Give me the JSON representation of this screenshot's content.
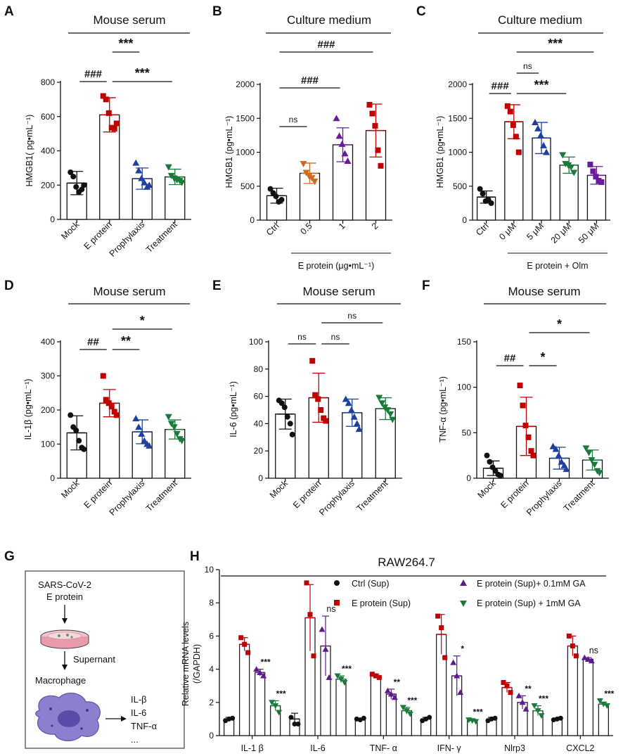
{
  "panels": {
    "A": {
      "label": "A",
      "title": "Mouse serum",
      "ylabel": "HMGB1( pg•mL⁻¹)",
      "categories": [
        "Mock",
        "E protein",
        "Prophylaxis",
        "Treatment"
      ],
      "annotations": [
        "###",
        "***",
        "***"
      ]
    },
    "B": {
      "label": "B",
      "title": "Culture medium",
      "ylabel": "HMGB1 (pg•mL⁻¹)",
      "categories": [
        "Ctrl",
        "0.5",
        "1",
        "2"
      ],
      "group_label": "E protein (μg•mL⁻¹)",
      "annotations": [
        "ns",
        "###",
        "###"
      ]
    },
    "C": {
      "label": "C",
      "title": "Culture medium",
      "ylabel": "HMGB1 (pg•mL⁻¹)",
      "categories": [
        "Ctrl",
        "0 μM",
        "5 μM",
        "20 μM",
        "50 μM"
      ],
      "group_label": "E protein + Olm",
      "annotations": [
        "###",
        "ns",
        "***",
        "***"
      ]
    },
    "D": {
      "label": "D",
      "title": "Mouse serum",
      "ylabel": "IL-1β (pg•mL⁻¹)",
      "categories": [
        "Mock",
        "E protein",
        "Prophylaxis",
        "Treatment"
      ],
      "annotations": [
        "##",
        "**",
        "*"
      ]
    },
    "E": {
      "label": "E",
      "title": "Mouse serum",
      "ylabel": "IL-6 (pg•mL⁻¹)",
      "categories": [
        "Mock",
        "E protein",
        "Prophylaxis",
        "Treatment"
      ],
      "annotations": [
        "ns",
        "ns",
        "ns"
      ]
    },
    "F": {
      "label": "F",
      "title": "Mouse serum",
      "ylabel": "TNF-α (pg•mL⁻¹)",
      "categories": [
        "Mock",
        "E protein",
        "Prophylaxis",
        "Treatment"
      ],
      "annotations": [
        "##",
        "*",
        "*"
      ]
    },
    "G": {
      "label": "G",
      "lines": [
        "SARS-CoV-2",
        "E protein",
        "Supernant",
        "Macrophage",
        "IL-β",
        "IL-6",
        "TNF-α",
        "..."
      ]
    },
    "H": {
      "label": "H",
      "title": "RAW264.7",
      "ylabel_line1": "Relative mRNA levels",
      "ylabel_line2": "(/GAPDH)",
      "legend": [
        "Ctrl (Sup)",
        "E protein (Sup)",
        "E protein (Sup)+ 0.1mM GA",
        "E protein (Sup) + 1mM GA"
      ]
    }
  },
  "chart_data": [
    {
      "id": "A",
      "type": "bar",
      "title": "Mouse serum",
      "ylabel": "HMGB1( pg•mL⁻¹)",
      "ylim": [
        0,
        800
      ],
      "yticks": [
        0,
        200,
        400,
        600,
        800
      ],
      "categories": [
        "Mock",
        "E protein",
        "Prophylaxis",
        "Treatment"
      ],
      "values": [
        212,
        610,
        238,
        248
      ],
      "errors": [
        68,
        100,
        62,
        45
      ],
      "colors": [
        "#111111",
        "#c00000",
        "#1f3f9e",
        "#1b7a3a"
      ],
      "markers": [
        "circle",
        "square",
        "triangle",
        "tri-down"
      ],
      "points": [
        [
          275,
          250,
          190,
          160,
          175,
          200
        ],
        [
          720,
          700,
          620,
          535,
          530,
          560
        ],
        [
          330,
          285,
          240,
          215,
          190,
          200
        ],
        [
          305,
          255,
          240,
          230,
          225,
          215
        ]
      ],
      "brackets": [
        {
          "from": 0,
          "to": 1,
          "text": "###",
          "level": 0
        },
        {
          "from": 1,
          "to": 3,
          "text": "***",
          "level": 0
        },
        {
          "from": 1,
          "to": 2,
          "text": "***",
          "level": 1
        }
      ]
    },
    {
      "id": "B",
      "type": "bar",
      "title": "Culture medium",
      "ylabel": "HMGB1 (pg•mL⁻¹)",
      "ylim": [
        0,
        2000
      ],
      "yticks": [
        0,
        500,
        1000,
        1500,
        2000
      ],
      "categories": [
        "Ctrl",
        "0.5",
        "1",
        "2"
      ],
      "values": [
        360,
        690,
        1110,
        1320
      ],
      "errors": [
        110,
        150,
        250,
        390
      ],
      "colors": [
        "#111111",
        "#d2691e",
        "#6a1b9a",
        "#c00000"
      ],
      "markers": [
        "circle",
        "tri-down",
        "triangle",
        "square"
      ],
      "points": [
        [
          460,
          400,
          350,
          270,
          300
        ],
        [
          830,
          700,
          650,
          620,
          570
        ],
        [
          1500,
          1240,
          1120,
          980,
          870
        ],
        [
          1700,
          1570,
          1390,
          1030,
          800
        ]
      ],
      "brackets": [
        {
          "from": 0,
          "to": 1,
          "text": "ns",
          "level": 0
        },
        {
          "from": 0,
          "to": 2,
          "text": "###",
          "level": 1
        },
        {
          "from": 0,
          "to": 3,
          "text": "###",
          "level": 2
        }
      ]
    },
    {
      "id": "C",
      "type": "bar",
      "title": "Culture medium",
      "ylabel": "HMGB1 (pg•mL⁻¹)",
      "ylim": [
        0,
        2000
      ],
      "yticks": [
        0,
        500,
        1000,
        1500,
        2000
      ],
      "categories": [
        "Ctrl",
        "0 μM",
        "5 μM",
        "20 μM",
        "50 μM"
      ],
      "values": [
        340,
        1450,
        1210,
        810,
        660
      ],
      "errors": [
        90,
        250,
        230,
        120,
        130
      ],
      "colors": [
        "#111111",
        "#c00000",
        "#1f3f9e",
        "#1b7a3a",
        "#6a1b9a"
      ],
      "markers": [
        "circle",
        "square",
        "triangle",
        "tri-down",
        "square"
      ],
      "points": [
        [
          460,
          390,
          280,
          300,
          250
        ],
        [
          1680,
          1600,
          1400,
          1230,
          1000
        ],
        [
          1440,
          1350,
          1250,
          1100,
          1000
        ],
        [
          960,
          830,
          810,
          780,
          700
        ],
        [
          820,
          720,
          640,
          580,
          560
        ]
      ],
      "brackets": [
        {
          "from": 0,
          "to": 1,
          "text": "###",
          "level": 0
        },
        {
          "from": 1,
          "to": 3,
          "text": "***",
          "level": 0
        },
        {
          "from": 1,
          "to": 2,
          "text": "ns",
          "level": 1
        },
        {
          "from": 1,
          "to": 4,
          "text": "***",
          "level": 2
        }
      ]
    },
    {
      "id": "D",
      "type": "bar",
      "title": "Mouse serum",
      "ylabel": "IL-1β (pg•mL⁻¹)",
      "ylim": [
        0,
        400
      ],
      "yticks": [
        0,
        100,
        200,
        300,
        400
      ],
      "categories": [
        "Mock",
        "E protein",
        "Prophylaxis",
        "Treatment"
      ],
      "values": [
        133,
        220,
        136,
        143
      ],
      "errors": [
        50,
        40,
        35,
        28
      ],
      "colors": [
        "#111111",
        "#c00000",
        "#1f3f9e",
        "#1b7a3a"
      ],
      "markers": [
        "circle",
        "square",
        "triangle",
        "tri-down"
      ],
      "points": [
        [
          185,
          150,
          140,
          110,
          90,
          85
        ],
        [
          300,
          230,
          220,
          210,
          195,
          185
        ],
        [
          175,
          150,
          130,
          110,
          100,
          95
        ],
        [
          180,
          160,
          150,
          130,
          115,
          110
        ]
      ],
      "brackets": [
        {
          "from": 0,
          "to": 1,
          "text": "##",
          "level": 0
        },
        {
          "from": 1,
          "to": 2,
          "text": "**",
          "level": 0
        },
        {
          "from": 1,
          "to": 3,
          "text": "*",
          "level": 1
        }
      ]
    },
    {
      "id": "E",
      "type": "bar",
      "title": "Mouse serum",
      "ylabel": "IL-6 (pg•mL⁻¹)",
      "ylim": [
        0,
        100
      ],
      "yticks": [
        0,
        20,
        40,
        60,
        80,
        100
      ],
      "categories": [
        "Mock",
        "E protein",
        "Prophylaxis",
        "Treatment"
      ],
      "values": [
        47,
        59,
        48,
        51
      ],
      "errors": [
        11,
        18,
        10,
        8
      ],
      "colors": [
        "#111111",
        "#c00000",
        "#1f3f9e",
        "#1b7a3a"
      ],
      "markers": [
        "circle",
        "square",
        "triangle",
        "tri-down"
      ],
      "points": [
        [
          57,
          55,
          52,
          45,
          40,
          32
        ],
        [
          86,
          61,
          58,
          50,
          44,
          42
        ],
        [
          58,
          55,
          50,
          45,
          40,
          36
        ],
        [
          59,
          55,
          52,
          50,
          47,
          43
        ]
      ],
      "brackets": [
        {
          "from": 0,
          "to": 1,
          "text": "ns",
          "level": 0
        },
        {
          "from": 1,
          "to": 2,
          "text": "ns",
          "level": 0
        },
        {
          "from": 1,
          "to": 3,
          "text": "ns",
          "level": 1
        }
      ]
    },
    {
      "id": "F",
      "type": "bar",
      "title": "Mouse serum",
      "ylabel": "TNF-α (pg•mL⁻¹)",
      "ylim": [
        0,
        150
      ],
      "yticks": [
        0,
        50,
        100,
        150
      ],
      "categories": [
        "Mock",
        "E protein",
        "Prophylaxis",
        "Treatment"
      ],
      "values": [
        11,
        57,
        22,
        20
      ],
      "errors": [
        8,
        32,
        12,
        11
      ],
      "colors": [
        "#111111",
        "#c00000",
        "#1f3f9e",
        "#1b7a3a"
      ],
      "markers": [
        "circle",
        "square",
        "triangle",
        "tri-down"
      ],
      "points": [
        [
          25,
          18,
          12,
          8,
          4,
          3
        ],
        [
          102,
          80,
          58,
          45,
          30,
          25
        ],
        [
          35,
          32,
          25,
          18,
          14,
          10
        ],
        [
          33,
          28,
          20,
          15,
          8,
          6
        ]
      ],
      "brackets": [
        {
          "from": 0,
          "to": 1,
          "text": "##",
          "level": 0
        },
        {
          "from": 1,
          "to": 2,
          "text": "*",
          "level": 0
        },
        {
          "from": 1,
          "to": 3,
          "text": "*",
          "level": 1
        }
      ]
    },
    {
      "id": "H",
      "type": "bar",
      "title": "RAW264.7",
      "ylabel": "Relative mRNA levels (/GAPDH)",
      "ylim": [
        0,
        10
      ],
      "yticks": [
        0,
        2,
        4,
        6,
        8,
        10
      ],
      "categories": [
        "IL-1 β",
        "IL-6",
        "TNF- α",
        "IFN- γ",
        "Nlrp3",
        "CXCL2"
      ],
      "series": [
        {
          "name": "Ctrl (Sup)",
          "color": "#111111",
          "marker": "circle",
          "values": [
            1.0,
            1.0,
            1.0,
            1.0,
            1.0,
            1.0
          ],
          "errors": [
            0.1,
            0.35,
            0.05,
            0.1,
            0.1,
            0.05
          ],
          "points": [
            [
              0.9,
              1.0,
              1.05
            ],
            [
              1.1,
              0.7,
              0.7
            ],
            [
              1.0,
              0.95,
              1.05
            ],
            [
              0.9,
              1.0,
              1.1
            ],
            [
              0.9,
              1.0,
              1.05
            ],
            [
              0.95,
              1.0,
              1.05
            ]
          ]
        },
        {
          "name": "E protein (Sup)",
          "color": "#c00000",
          "marker": "square",
          "values": [
            5.5,
            7.1,
            3.6,
            6.1,
            2.9,
            5.4
          ],
          "errors": [
            0.4,
            2.0,
            0.1,
            1.2,
            0.3,
            0.6
          ],
          "points": [
            [
              5.9,
              5.5,
              5.0
            ],
            [
              9.2,
              7.3,
              4.8
            ],
            [
              3.7,
              3.6,
              3.5
            ],
            [
              7.2,
              6.5,
              4.7
            ],
            [
              3.2,
              3.0,
              2.6
            ],
            [
              6.0,
              5.4,
              4.8
            ]
          ]
        },
        {
          "name": "E protein (Sup)+ 0.1mM GA",
          "color": "#5b1b8a",
          "marker": "triangle",
          "values": [
            3.8,
            5.4,
            2.5,
            3.6,
            2.0,
            4.6
          ],
          "errors": [
            0.2,
            1.8,
            0.3,
            1.2,
            0.4,
            0.1
          ],
          "points": [
            [
              4.0,
              3.8,
              3.6
            ],
            [
              6.4,
              5.2,
              3.5
            ],
            [
              2.7,
              2.5,
              2.3
            ],
            [
              4.4,
              3.6,
              2.6
            ],
            [
              2.4,
              2.0,
              1.6
            ],
            [
              4.7,
              4.6,
              4.5
            ]
          ]
        },
        {
          "name": "E protein (Sup) + 1mM GA",
          "color": "#1b7a3a",
          "marker": "tri-down",
          "values": [
            1.8,
            3.4,
            1.5,
            0.9,
            1.5,
            1.9
          ],
          "errors": [
            0.3,
            0.2,
            0.2,
            0.1,
            0.3,
            0.1
          ],
          "points": [
            [
              2.0,
              1.8,
              1.4
            ],
            [
              3.6,
              3.4,
              3.2
            ],
            [
              1.7,
              1.5,
              1.3
            ],
            [
              0.95,
              0.9,
              0.85
            ],
            [
              1.8,
              1.5,
              1.2
            ],
            [
              2.1,
              1.9,
              1.8
            ]
          ]
        }
      ],
      "sig_mid": [
        "***",
        "ns",
        "**",
        "*",
        "**",
        "ns"
      ],
      "sig_high": [
        "***",
        "***",
        "***",
        "***",
        "***",
        "***"
      ]
    }
  ]
}
